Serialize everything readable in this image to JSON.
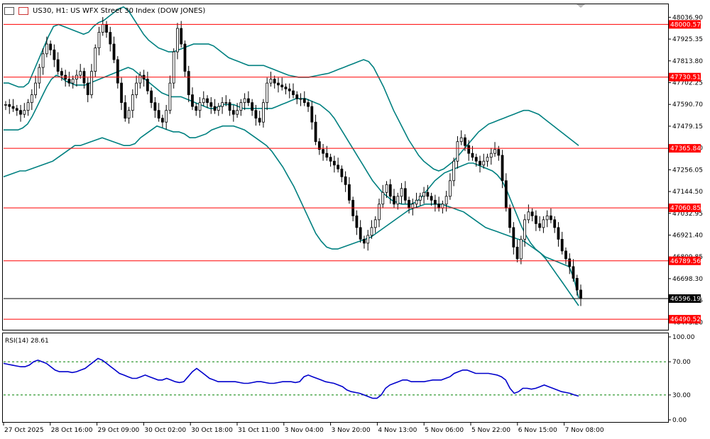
{
  "header": {
    "symbol_line": "US30, H1:  US WFX Street 30 Index (DOW JONES)"
  },
  "rsi_label": "RSI(14) 28.61",
  "colors": {
    "candle": "#000000",
    "bands": "#008080",
    "level_line": "#ff0000",
    "level_box_bg": "#ff0000",
    "rsi_line": "#0000cc",
    "rsi_levels": "#008000",
    "current_line": "#000000"
  },
  "chart_data": {
    "type": "candlestick",
    "price_axis_ticks": [
      "48036.90",
      "47925.35",
      "47813.80",
      "47702.25",
      "47590.70",
      "47479.15",
      "47367.60",
      "47256.05",
      "47144.50",
      "47032.95",
      "46921.40",
      "46809.85",
      "46698.30",
      "46586.75",
      "46475.20"
    ],
    "price_range": [
      46440,
      48100
    ],
    "levels": [
      {
        "label": "48000.57",
        "value": 48000.57
      },
      {
        "label": "47730.51",
        "value": 47730.51
      },
      {
        "label": "47365.84",
        "value": 47365.84
      },
      {
        "label": "47060.85",
        "value": 47060.85
      },
      {
        "label": "46789.56",
        "value": 46789.56
      },
      {
        "label": "46490.52",
        "value": 46490.52
      }
    ],
    "current_price": {
      "label": "46596.19",
      "value": 46596.19
    },
    "x_labels": [
      "27 Oct 2025",
      "28 Oct 16:00",
      "29 Oct 09:00",
      "30 Oct 02:00",
      "30 Oct 18:00",
      "31 Oct 11:00",
      "3 Nov 04:00",
      "3 Nov 20:00",
      "4 Nov 13:00",
      "5 Nov 06:00",
      "5 Nov 22:00",
      "6 Nov 15:00",
      "7 Nov 08:00"
    ],
    "close_series": [
      47590,
      47580,
      47570,
      47560,
      47540,
      47560,
      47600,
      47640,
      47700,
      47780,
      47850,
      47900,
      47870,
      47820,
      47760,
      47740,
      47720,
      47700,
      47720,
      47740,
      47760,
      47700,
      47640,
      47760,
      47880,
      47960,
      48000,
      47960,
      47900,
      47820,
      47700,
      47600,
      47520,
      47560,
      47640,
      47700,
      47740,
      47720,
      47660,
      47600,
      47560,
      47520,
      47500,
      47560,
      47700,
      47860,
      47980,
      47900,
      47760,
      47640,
      47580,
      47560,
      47600,
      47620,
      47600,
      47580,
      47560,
      47580,
      47600,
      47600,
      47560,
      47540,
      47560,
      47600,
      47620,
      47600,
      47560,
      47520,
      47500,
      47600,
      47700,
      47720,
      47700,
      47690,
      47680,
      47670,
      47660,
      47640,
      47620,
      47620,
      47600,
      47580,
      47500,
      47400,
      47360,
      47340,
      47320,
      47300,
      47280,
      47260,
      47220,
      47180,
      47100,
      47020,
      46960,
      46900,
      46880,
      46920,
      46960,
      47000,
      47080,
      47140,
      47180,
      47120,
      47080,
      47120,
      47160,
      47100,
      47060,
      47080,
      47100,
      47120,
      47140,
      47120,
      47100,
      47080,
      47060,
      47080,
      47120,
      47200,
      47300,
      47400,
      47420,
      47380,
      47340,
      47320,
      47300,
      47280,
      47300,
      47320,
      47340,
      47360,
      47330,
      47200,
      47060,
      46960,
      46860,
      46800,
      46900,
      47000,
      47040,
      47020,
      46980,
      46960,
      47000,
      47020,
      47000,
      46960,
      46900,
      46840,
      46800,
      46760,
      46700,
      46640,
      46596
    ],
    "upper_band": [
      47700,
      47700,
      47690,
      47680,
      47680,
      47700,
      47760,
      47820,
      47880,
      47940,
      47990,
      48000,
      47990,
      47980,
      47970,
      47960,
      47950,
      47960,
      47990,
      48010,
      48020,
      48040,
      48060,
      48080,
      48090,
      48070,
      48030,
      47990,
      47950,
      47920,
      47900,
      47880,
      47870,
      47860,
      47860,
      47870,
      47880,
      47890,
      47900,
      47900,
      47900,
      47900,
      47890,
      47870,
      47850,
      47830,
      47820,
      47810,
      47800,
      47790,
      47790,
      47790,
      47790,
      47780,
      47770,
      47760,
      47750,
      47740,
      47735,
      47730,
      47730,
      47730,
      47735,
      47740,
      47745,
      47750,
      47760,
      47770,
      47780,
      47790,
      47800,
      47810,
      47820,
      47810,
      47780,
      47730,
      47680,
      47620,
      47560,
      47510,
      47460,
      47410,
      47370,
      47330,
      47300,
      47280,
      47260,
      47250,
      47260,
      47280,
      47300,
      47330,
      47360,
      47390,
      47420,
      47450,
      47470,
      47490,
      47500,
      47510,
      47520,
      47530,
      47540,
      47550,
      47560,
      47560,
      47550,
      47540,
      47520,
      47500,
      47480,
      47460,
      47440,
      47420,
      47400,
      47380
    ],
    "middle_band": [
      47460,
      47460,
      47460,
      47460,
      47470,
      47490,
      47530,
      47580,
      47630,
      47680,
      47720,
      47740,
      47730,
      47710,
      47700,
      47690,
      47690,
      47690,
      47700,
      47710,
      47720,
      47730,
      47740,
      47750,
      47760,
      47770,
      47780,
      47770,
      47750,
      47730,
      47710,
      47690,
      47670,
      47650,
      47640,
      47630,
      47630,
      47630,
      47620,
      47610,
      47600,
      47590,
      47580,
      47570,
      47570,
      47580,
      47590,
      47590,
      47590,
      47580,
      47570,
      47570,
      47570,
      47570,
      47570,
      47570,
      47570,
      47580,
      47590,
      47600,
      47610,
      47620,
      47620,
      47620,
      47610,
      47600,
      47590,
      47570,
      47550,
      47520,
      47480,
      47440,
      47400,
      47360,
      47320,
      47280,
      47240,
      47200,
      47170,
      47140,
      47120,
      47100,
      47090,
      47080,
      47080,
      47080,
      47090,
      47110,
      47140,
      47170,
      47200,
      47220,
      47240,
      47250,
      47260,
      47270,
      47280,
      47290,
      47290,
      47280,
      47270,
      47260,
      47250,
      47230,
      47200,
      47150,
      47090,
      47030,
      46970,
      46920,
      46880,
      46850,
      46830,
      46810,
      46800,
      46790,
      46780,
      46770,
      46760,
      46700,
      46600
    ],
    "lower_band": [
      47220,
      47230,
      47240,
      47250,
      47250,
      47260,
      47270,
      47280,
      47290,
      47300,
      47320,
      47340,
      47360,
      47380,
      47380,
      47390,
      47400,
      47410,
      47420,
      47410,
      47400,
      47390,
      47380,
      47380,
      47390,
      47420,
      47440,
      47460,
      47480,
      47470,
      47460,
      47450,
      47450,
      47440,
      47420,
      47420,
      47430,
      47440,
      47460,
      47470,
      47480,
      47480,
      47480,
      47470,
      47460,
      47440,
      47420,
      47400,
      47380,
      47350,
      47310,
      47270,
      47220,
      47170,
      47110,
      47050,
      46990,
      46930,
      46890,
      46860,
      46850,
      46850,
      46860,
      46870,
      46880,
      46890,
      46900,
      46910,
      46930,
      46950,
      46970,
      46990,
      47010,
      47030,
      47050,
      47060,
      47070,
      47080,
      47080,
      47080,
      47080,
      47070,
      47060,
      47050,
      47040,
      47020,
      47000,
      46980,
      46960,
      46950,
      46940,
      46930,
      46920,
      46910,
      46900,
      46890,
      46870,
      46850,
      46830,
      46800,
      46760,
      46720,
      46680,
      46640,
      46600,
      46560
    ],
    "rsi": {
      "label": "RSI(14)",
      "last_value": 28.61,
      "ticks": [
        "100.00",
        "70.00",
        "30.00",
        "0.00"
      ],
      "levels": [
        70,
        30
      ],
      "range": [
        0,
        100
      ],
      "values": [
        68,
        67,
        66,
        65,
        64,
        64,
        66,
        70,
        72,
        70,
        68,
        64,
        60,
        58,
        58,
        58,
        57,
        58,
        60,
        62,
        66,
        70,
        74,
        72,
        68,
        64,
        60,
        56,
        54,
        52,
        50,
        50,
        52,
        54,
        52,
        50,
        48,
        48,
        50,
        48,
        46,
        45,
        46,
        52,
        58,
        62,
        58,
        54,
        50,
        48,
        46,
        46,
        46,
        46,
        46,
        45,
        44,
        44,
        45,
        46,
        46,
        45,
        44,
        44,
        45,
        46,
        46,
        46,
        45,
        46,
        52,
        54,
        52,
        50,
        48,
        46,
        45,
        44,
        42,
        40,
        36,
        34,
        33,
        32,
        30,
        28,
        26,
        26,
        30,
        38,
        42,
        44,
        46,
        48,
        48,
        46,
        46,
        46,
        46,
        47,
        48,
        48,
        48,
        50,
        52,
        56,
        58,
        60,
        60,
        58,
        56,
        56,
        56,
        56,
        55,
        54,
        52,
        48,
        38,
        32,
        34,
        38,
        38,
        37,
        38,
        40,
        42,
        40,
        38,
        36,
        34,
        33,
        32,
        30,
        28.61
      ]
    }
  }
}
